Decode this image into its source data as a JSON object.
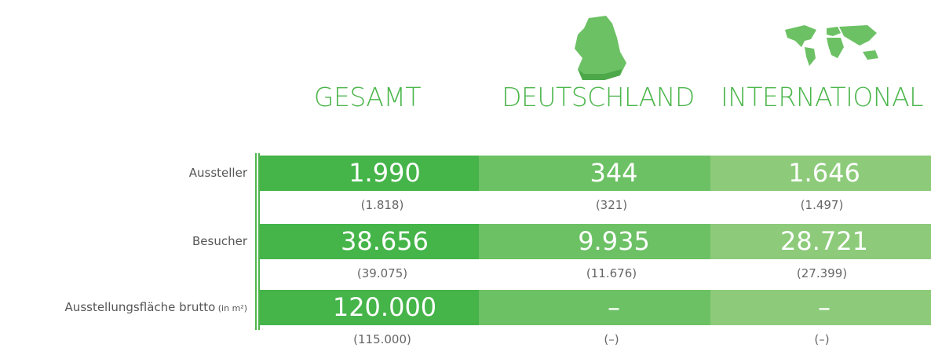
{
  "columns": [
    "GESAMT",
    "DEUTSCHLAND",
    "INTERNATIONAL"
  ],
  "rows": [
    {
      "label": "Aussteller",
      "values": [
        "1.990",
        "344",
        "1.646"
      ],
      "previous": [
        "(1.818)",
        "(321)",
        "(1.497)"
      ]
    },
    {
      "label": "Besucher",
      "values": [
        "38.656",
        "9.935",
        "28.721"
      ],
      "previous": [
        "(39.075)",
        "(11.676)",
        "(27.399)"
      ]
    },
    {
      "label": "Ausstellungsfläche brutto",
      "unit": "(in m²)",
      "values": [
        "120.000",
        "–",
        "–"
      ],
      "previous": [
        "(115.000)",
        "(–)",
        "(–)"
      ]
    }
  ]
}
